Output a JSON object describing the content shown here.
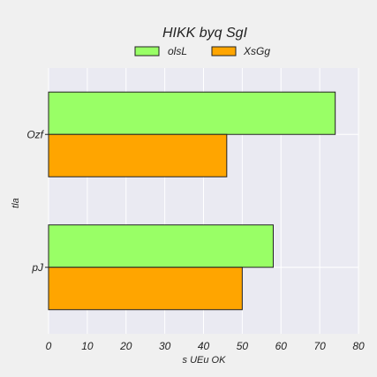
{
  "chart_data": {
    "type": "bar",
    "orientation": "horizontal",
    "title": "HIKK  byq SgI",
    "xlabel": "s  UEu OK",
    "ylabel": "tla",
    "categories": [
      "Ozf",
      "pJ"
    ],
    "series": [
      {
        "name": "olsL",
        "values": [
          74,
          58
        ],
        "color": "#99ff66"
      },
      {
        "name": "XsGg",
        "values": [
          46,
          50
        ],
        "color": "#ffa500"
      }
    ],
    "xlim": [
      0,
      80
    ],
    "xticks": [
      0,
      10,
      20,
      30,
      40,
      50,
      60,
      70,
      80
    ],
    "grid": true,
    "legend_position": "top-center",
    "plot_background": "#eaeaf2"
  }
}
